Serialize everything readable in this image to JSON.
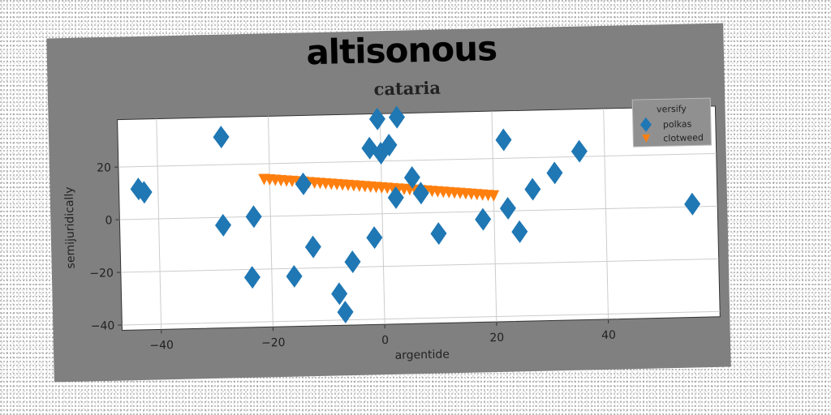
{
  "chart_data": {
    "type": "scatter",
    "suptitle": "altisonous",
    "title": "cataria",
    "xlabel": "argentide",
    "ylabel": "semijuridically",
    "xlim": [
      -47,
      60
    ],
    "ylim": [
      -42,
      38
    ],
    "xticks": [
      -40,
      -20,
      0,
      20,
      40
    ],
    "yticks": [
      -40,
      -20,
      0,
      20
    ],
    "grid": true,
    "legend": {
      "title": "versify",
      "placement": "top-right"
    },
    "series": [
      {
        "name": "polkas",
        "marker": "diamond",
        "color": "#1f77b4",
        "points": [
          [
            -43.5,
            11.5
          ],
          [
            -42.5,
            10.2
          ],
          [
            -28.5,
            30.5
          ],
          [
            -28.5,
            -3
          ],
          [
            -23,
            0
          ],
          [
            -23.5,
            -23
          ],
          [
            -16,
            -23
          ],
          [
            -12.5,
            -12
          ],
          [
            -14,
            12
          ],
          [
            -8,
            -30
          ],
          [
            -7,
            -37
          ],
          [
            -5.5,
            -18
          ],
          [
            -1.5,
            -9
          ],
          [
            -2,
            25
          ],
          [
            -0.5,
            36
          ],
          [
            0,
            23
          ],
          [
            1.5,
            26
          ],
          [
            3,
            36.5
          ],
          [
            2.5,
            6
          ],
          [
            5.5,
            13.5
          ],
          [
            7,
            7.5
          ],
          [
            10,
            -8
          ],
          [
            18,
            -3
          ],
          [
            22,
            27
          ],
          [
            22.5,
            1
          ],
          [
            24.5,
            -8
          ],
          [
            27,
            8
          ],
          [
            31,
            14
          ],
          [
            35.5,
            22
          ],
          [
            55.5,
            1
          ]
        ]
      },
      {
        "name": "clotweed",
        "marker": "triangle-down",
        "color": "#ff7f0e",
        "points": [
          [
            -21,
            14.0
          ],
          [
            -20,
            13.8
          ],
          [
            -19,
            13.6
          ],
          [
            -18,
            13.4
          ],
          [
            -17,
            13.2
          ],
          [
            -16,
            13.0
          ],
          [
            -15,
            12.8
          ],
          [
            -14,
            12.6
          ],
          [
            -13,
            12.4
          ],
          [
            -12,
            12.2
          ],
          [
            -11,
            12.0
          ],
          [
            -10,
            11.8
          ],
          [
            -9,
            11.6
          ],
          [
            -8,
            11.4
          ],
          [
            -7,
            11.2
          ],
          [
            -6,
            11.0
          ],
          [
            -5,
            10.8
          ],
          [
            -4,
            10.6
          ],
          [
            -3,
            10.4
          ],
          [
            -2,
            10.2
          ],
          [
            -1,
            10.0
          ],
          [
            0,
            9.8
          ],
          [
            1,
            9.6
          ],
          [
            2,
            9.4
          ],
          [
            3,
            9.2
          ],
          [
            4,
            9.0
          ],
          [
            5,
            8.8
          ],
          [
            6,
            8.6
          ],
          [
            7,
            8.4
          ],
          [
            8,
            8.2
          ],
          [
            9,
            8.0
          ],
          [
            10,
            7.8
          ],
          [
            11,
            7.6
          ],
          [
            12,
            7.4
          ],
          [
            13,
            7.2
          ],
          [
            14,
            7.0
          ],
          [
            15,
            6.8
          ],
          [
            16,
            6.6
          ],
          [
            17,
            6.4
          ],
          [
            18,
            6.2
          ],
          [
            19,
            6.0
          ],
          [
            20,
            5.8
          ]
        ]
      }
    ]
  }
}
